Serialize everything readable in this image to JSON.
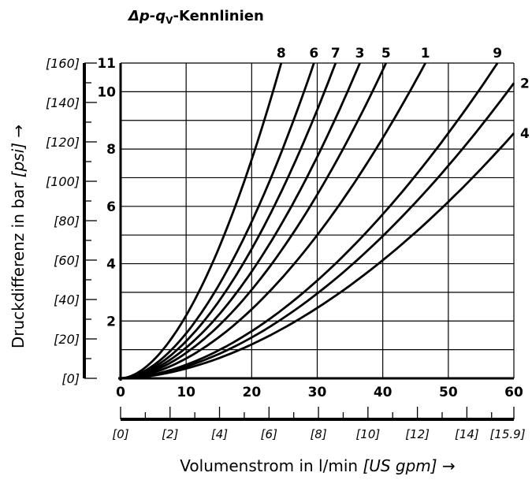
{
  "chart_data": {
    "type": "line",
    "title_main": "Δp-q",
    "title_sub": "V",
    "title_suffix": "-Kennlinien",
    "ylabel_main": "Druckdifferenz in bar ",
    "ylabel_unit": "[psi]",
    "ylabel_arrow": " →",
    "xlabel_main": "Volumenstrom in l/min ",
    "xlabel_unit": "[US gpm]",
    "xlabel_arrow": " →",
    "xlim": [
      0,
      60
    ],
    "ylim": [
      0,
      11
    ],
    "x_ticks": [
      "0",
      "10",
      "20",
      "30",
      "40",
      "50",
      "60"
    ],
    "y_ticks": [
      "2",
      "4",
      "6",
      "8",
      "10",
      "11"
    ],
    "psi_ticks": [
      "[0]",
      "[20]",
      "[40]",
      "[60]",
      "[80]",
      "[100]",
      "[120]",
      "[140]",
      "[160]"
    ],
    "gpm_ticks": [
      "[0]",
      "[2]",
      "[4]",
      "[6]",
      "[8]",
      "[10]",
      "[12]",
      "[14]",
      "[15.9]"
    ],
    "grid": true,
    "series": [
      {
        "name": "8",
        "exponent": 1.8,
        "x": [
          0,
          6,
          12,
          18,
          24.5
        ],
        "y": [
          0,
          0.89,
          3.11,
          6.53,
          11
        ]
      },
      {
        "name": "6",
        "exponent": 1.8,
        "x": [
          0,
          7.5,
          15,
          22,
          29.5
        ],
        "y": [
          0,
          0.95,
          3.3,
          6.65,
          11
        ]
      },
      {
        "name": "7",
        "exponent": 1.8,
        "x": [
          0,
          8.2,
          16.4,
          24.6,
          32.8
        ],
        "y": [
          0,
          0.9,
          3.14,
          6.5,
          11
        ]
      },
      {
        "name": "3",
        "exponent": 1.8,
        "x": [
          0,
          9,
          18,
          27,
          36.5
        ],
        "y": [
          0,
          0.88,
          3.05,
          6.32,
          11
        ]
      },
      {
        "name": "5",
        "exponent": 1.8,
        "x": [
          0,
          10,
          20,
          30,
          40.5
        ],
        "y": [
          0,
          0.88,
          3.05,
          6.34,
          11
        ]
      },
      {
        "name": "1",
        "exponent": 1.8,
        "x": [
          0,
          12,
          24,
          36,
          46.5
        ],
        "y": [
          0,
          0.96,
          3.35,
          6.95,
          11
        ]
      },
      {
        "name": "9",
        "exponent": 1.8,
        "x": [
          0,
          15,
          30,
          45,
          57.5
        ],
        "y": [
          0,
          0.96,
          3.36,
          6.96,
          11
        ]
      },
      {
        "name": "2",
        "exponent": 1.8,
        "x": [
          0,
          15,
          30,
          45,
          60
        ],
        "y": [
          0,
          0.85,
          2.97,
          6.15,
          10.3
        ]
      },
      {
        "name": "4",
        "exponent": 1.8,
        "x": [
          0,
          15,
          30,
          45,
          60
        ],
        "y": [
          0,
          0.71,
          2.47,
          5.1,
          8.55
        ]
      }
    ]
  }
}
